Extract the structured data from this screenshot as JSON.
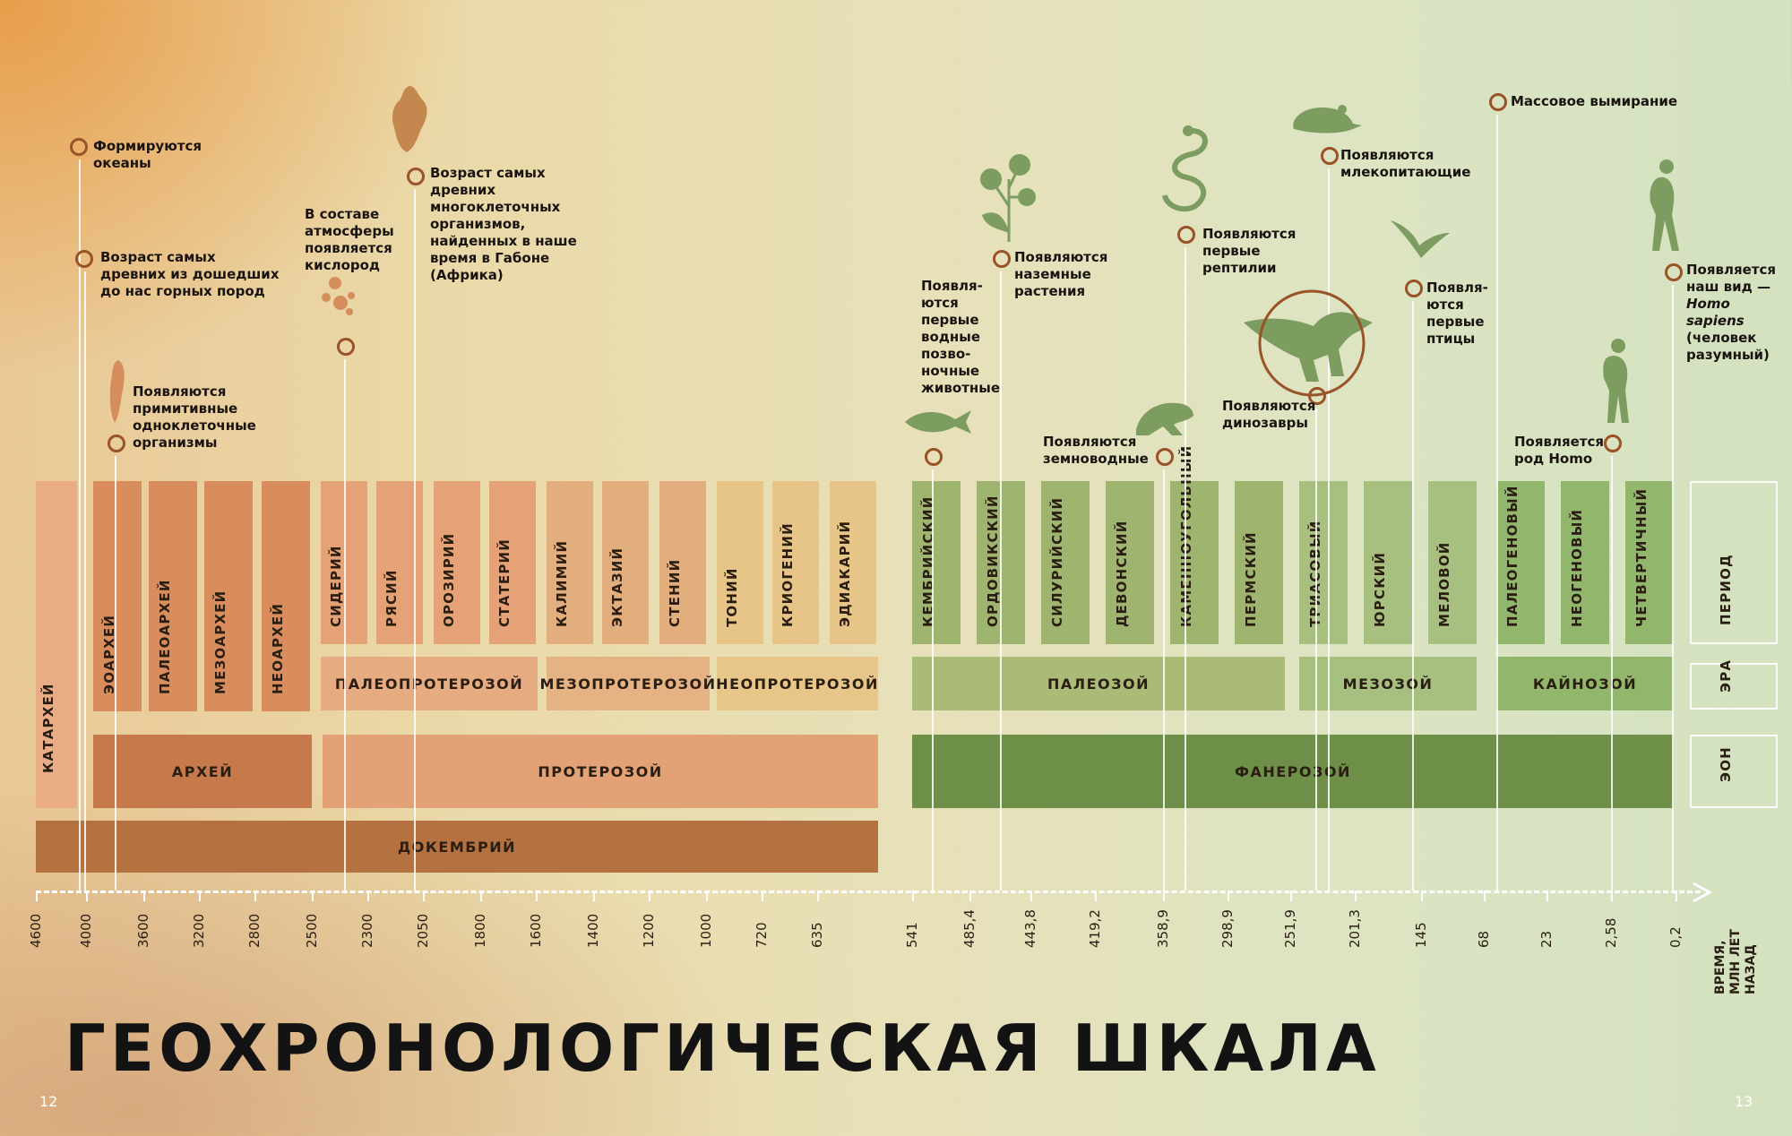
{
  "title": "ГЕОХРОНОЛОГИЧЕСКАЯ ШКАЛА",
  "page_left": "12",
  "page_right": "13",
  "legend": {
    "period": "ПЕРИОД",
    "era": "ЭРА",
    "eon": "ЭОН"
  },
  "axis_label": [
    "ВРЕМЯ,",
    "МЛН ЛЕТ",
    "НАЗАД"
  ],
  "ticks": [
    "4600",
    "4000",
    "3600",
    "3200",
    "2800",
    "2500",
    "2300",
    "2050",
    "1800",
    "1600",
    "1400",
    "1200",
    "1000",
    "720",
    "635",
    "541",
    "485,4",
    "443,8",
    "419,2",
    "358,9",
    "298,9",
    "251,9",
    "201,3",
    "145",
    "68",
    "23",
    "2,58",
    "0,2"
  ],
  "precambrian": "ДОКЕМБРИЙ",
  "katarchean": "КАТАРХЕЙ",
  "eons": [
    "АРХЕЙ",
    "ПРОТЕРОЗОЙ",
    "ФАНЕРОЗОЙ"
  ],
  "eras": [
    "ПАЛЕОПРОТЕРОЗОЙ",
    "МЕЗОПРОТЕРОЗОЙ",
    "НЕОПРОТЕРОЗОЙ",
    "ПАЛЕОЗОЙ",
    "МЕЗОЗОЙ",
    "КАЙНОЗОЙ"
  ],
  "archean_periods": [
    "ЭОАРХЕЙ",
    "ПАЛЕОАРХЕЙ",
    "МЕЗОАРХЕЙ",
    "НЕОАРХЕЙ"
  ],
  "proterozoic_periods": [
    "СИДЕРИЙ",
    "РЯСИЙ",
    "ОРОЗИРИЙ",
    "СТАТЕРИЙ",
    "КАЛИМИЙ",
    "ЭКТАЗИЙ",
    "СТЕНИЙ",
    "ТОНИЙ",
    "КРИОГЕНИЙ",
    "ЭДИАКАРИЙ"
  ],
  "phanerozoic_periods": [
    "КЕМБРИЙСКИЙ",
    "ОРДОВИКСКИЙ",
    "СИЛУРИЙСКИЙ",
    "ДЕВОНСКИЙ",
    "КАМЕННОУГОЛЬНЫЙ",
    "ПЕРМСКИЙ",
    "ТРИАСОВЫЙ",
    "ЮРСКИЙ",
    "МЕЛОВОЙ",
    "ПАЛЕОГЕНОВЫЙ",
    "НЕОГЕНОВЫЙ",
    "ЧЕТВЕРТИЧНЫЙ"
  ],
  "events": [
    {
      "lines": [
        "Формируются",
        "океаны"
      ]
    },
    {
      "lines": [
        "Возраст самых",
        "древних из дошедших",
        "до нас горных пород"
      ]
    },
    {
      "lines": [
        "Появляются",
        "примитивные",
        "одноклеточные",
        "организмы"
      ]
    },
    {
      "lines": [
        "В составе",
        "атмосферы",
        "появляется",
        "кислород"
      ]
    },
    {
      "lines": [
        "Возраст самых",
        "древних",
        "многоклеточных",
        "организмов,",
        "найденных в наше",
        "время в Габоне",
        "(Африка)"
      ]
    },
    {
      "lines": [
        "Появля-",
        "ются",
        "первые",
        "водные",
        "позво-",
        "ночные",
        "животные"
      ]
    },
    {
      "lines": [
        "Появляются",
        "наземные",
        "растения"
      ]
    },
    {
      "lines": [
        "Появляются",
        "земноводные"
      ]
    },
    {
      "lines": [
        "Появляются",
        "первые",
        "рептилии"
      ]
    },
    {
      "lines": [
        "Появляются",
        "динозавры"
      ]
    },
    {
      "lines": [
        "Появляются",
        "млекопитающие"
      ]
    },
    {
      "lines": [
        "Появля-",
        "ются",
        "первые",
        "птицы"
      ]
    },
    {
      "lines": [
        "Массовое вымирание"
      ]
    },
    {
      "lines": [
        "Появляется",
        "род Homo"
      ]
    },
    {
      "lines": [
        "Появляется",
        "наш вид —",
        "Homo sapiens",
        "(человек",
        "разумный)"
      ]
    }
  ],
  "colors": {
    "archean": "#d98c5c",
    "proterozoic": "#e4a276",
    "precambrian": "#b3723f",
    "phanerozoic": "#6d8f48",
    "mesozoic": "#98b56e",
    "ring": "#9a5326"
  }
}
